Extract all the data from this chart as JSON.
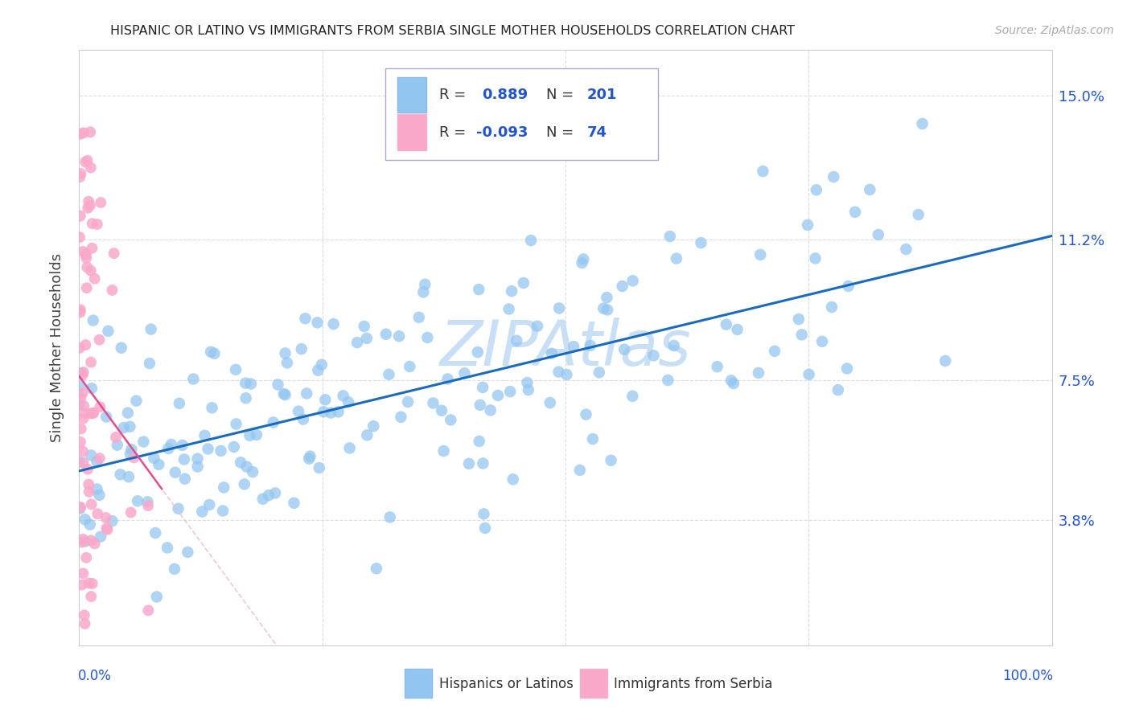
{
  "title": "HISPANIC OR LATINO VS IMMIGRANTS FROM SERBIA SINGLE MOTHER HOUSEHOLDS CORRELATION CHART",
  "source": "Source: ZipAtlas.com",
  "ylabel": "Single Mother Households",
  "yticks": [
    0.038,
    0.075,
    0.112,
    0.15
  ],
  "ytick_labels": [
    "3.8%",
    "7.5%",
    "11.2%",
    "15.0%"
  ],
  "xmin": 0.0,
  "xmax": 1.0,
  "ymin": 0.005,
  "ymax": 0.162,
  "blue_R": 0.889,
  "blue_N": 201,
  "pink_R": -0.093,
  "pink_N": 74,
  "blue_color": "#92c5f0",
  "pink_color": "#f9a8c9",
  "trend_blue_color": "#1a6bbf",
  "trend_pink_color": "#e05090",
  "trend_pink_dash_color": "#f0b8d0",
  "watermark": "ZIPAtlas",
  "watermark_color": "#c8dff5",
  "background_color": "#ffffff",
  "title_fontsize": 11.5,
  "legend_color": "#2255cc",
  "grid_color": "#dddddd",
  "axis_label_color": "#2255cc"
}
